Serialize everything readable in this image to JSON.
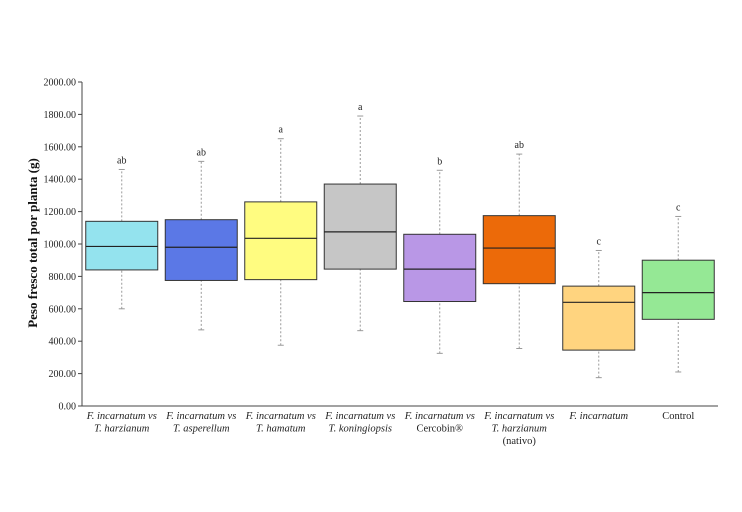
{
  "chart_data": {
    "type": "boxplot",
    "title": "",
    "xlabel": "",
    "ylabel": "Peso fresco total por planta (g)",
    "ylim": [
      0,
      2000
    ],
    "yticks": [
      "0.00",
      "200.00",
      "400.00",
      "600.00",
      "800.00",
      "1000.00",
      "1200.00",
      "1400.00",
      "1600.00",
      "1800.00",
      "2000.00"
    ],
    "grid": false,
    "legend": "none",
    "categories": [
      {
        "lines": [
          {
            "text": "F. incarnatum vs",
            "italic": true
          },
          {
            "text": "T. harzianum",
            "italic": true
          }
        ]
      },
      {
        "lines": [
          {
            "text": "F. incarnatum vs",
            "italic": true
          },
          {
            "text": "T. asperellum",
            "italic": true
          }
        ]
      },
      {
        "lines": [
          {
            "text": "F. incarnatum vs",
            "italic": true
          },
          {
            "text": "T. hamatum",
            "italic": true
          }
        ]
      },
      {
        "lines": [
          {
            "text": "F. incarnatum vs",
            "italic": true
          },
          {
            "text": "T. koningiopsis",
            "italic": true
          }
        ]
      },
      {
        "lines": [
          {
            "text": "F. incarnatum vs",
            "italic": true
          },
          {
            "text": "Cercobin®",
            "italic": false
          }
        ]
      },
      {
        "lines": [
          {
            "text": "F. incarnatum vs",
            "italic": true
          },
          {
            "text": "T. harzianum",
            "italic": true
          },
          {
            "text": "(nativo)",
            "italic": false
          }
        ]
      },
      {
        "lines": [
          {
            "text": "F. incarnatum",
            "italic": true
          }
        ]
      },
      {
        "lines": [
          {
            "text": "Control",
            "italic": false
          }
        ]
      }
    ],
    "boxes": [
      {
        "min": 600,
        "q1": 840,
        "median": 985,
        "q3": 1140,
        "max": 1460,
        "sig": "ab",
        "color": "#94e3ee"
      },
      {
        "min": 470,
        "q1": 775,
        "median": 980,
        "q3": 1150,
        "max": 1510,
        "sig": "ab",
        "color": "#5b78e6"
      },
      {
        "min": 375,
        "q1": 780,
        "median": 1035,
        "q3": 1260,
        "max": 1650,
        "sig": "a",
        "color": "#fffc80"
      },
      {
        "min": 465,
        "q1": 845,
        "median": 1075,
        "q3": 1370,
        "max": 1790,
        "sig": "a",
        "color": "#c6c6c6"
      },
      {
        "min": 325,
        "q1": 645,
        "median": 845,
        "q3": 1060,
        "max": 1455,
        "sig": "b",
        "color": "#b997e6"
      },
      {
        "min": 355,
        "q1": 755,
        "median": 975,
        "q3": 1175,
        "max": 1555,
        "sig": "ab",
        "color": "#ec6a09"
      },
      {
        "min": 175,
        "q1": 345,
        "median": 640,
        "q3": 740,
        "max": 960,
        "sig": "c",
        "color": "#ffd47f"
      },
      {
        "min": 210,
        "q1": 535,
        "median": 700,
        "q3": 900,
        "max": 1170,
        "sig": "c",
        "color": "#95e895"
      }
    ]
  }
}
